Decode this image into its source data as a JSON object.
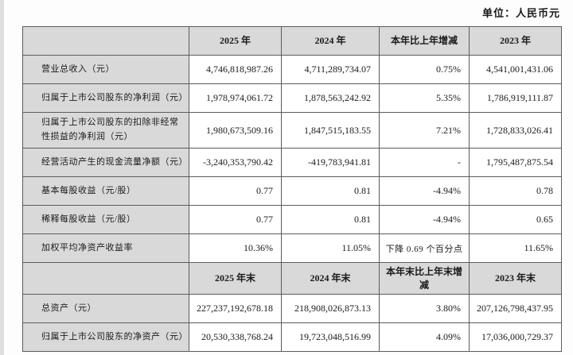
{
  "unit_note": "单位：人民币元",
  "colors": {
    "header_bg": "#d9d9d9",
    "border": "#5c5c5c",
    "page_bg": "#fdfdfd",
    "text": "#1a1a1a"
  },
  "table": {
    "section1": {
      "header": [
        "",
        "2025 年",
        "2024 年",
        "本年比上年增减",
        "2023 年"
      ],
      "rows": [
        {
          "label": "营业总收入（元）",
          "y2025": "4,746,818,987.26",
          "y2024": "4,711,289,734.07",
          "change": "0.75%",
          "y2023": "4,541,001,431.06"
        },
        {
          "label": "归属于上市公司股东的净利润（元）",
          "y2025": "1,978,974,061.72",
          "y2024": "1,878,563,242.92",
          "change": "5.35%",
          "y2023": "1,786,919,111.87"
        },
        {
          "label": "归属于上市公司股东的扣除非经常性损益的净利润（元）",
          "y2025": "1,980,673,509.16",
          "y2024": "1,847,515,183.55",
          "change": "7.21%",
          "y2023": "1,728,833,026.41"
        },
        {
          "label": "经营活动产生的现金流量净额（元）",
          "y2025": "-3,240,353,790.42",
          "y2024": "-419,783,941.81",
          "change": "-",
          "y2023": "1,795,487,875.54"
        },
        {
          "label": "基本每股收益（元/股）",
          "y2025": "0.77",
          "y2024": "0.81",
          "change": "-4.94%",
          "y2023": "0.78"
        },
        {
          "label": "稀释每股收益（元/股）",
          "y2025": "0.77",
          "y2024": "0.81",
          "change": "-4.94%",
          "y2023": "0.65"
        },
        {
          "label": "加权平均净资产收益率",
          "y2025": "10.36%",
          "y2024": "11.05%",
          "change": "下降 0.69 个百分点",
          "y2023": "11.65%"
        }
      ]
    },
    "section2": {
      "header": [
        "",
        "2025 年末",
        "2024 年末",
        "本年末比上年末增减",
        "2023 年末"
      ],
      "rows": [
        {
          "label": "总资产（元）",
          "y2025": "227,237,192,678.18",
          "y2024": "218,908,026,873.13",
          "change": "3.80%",
          "y2023": "207,126,798,437.95"
        },
        {
          "label": "归属于上市公司股东的净资产（元）",
          "y2025": "20,530,338,768.24",
          "y2024": "19,723,048,516.99",
          "change": "4.09%",
          "y2023": "17,036,000,729.37"
        }
      ]
    }
  }
}
